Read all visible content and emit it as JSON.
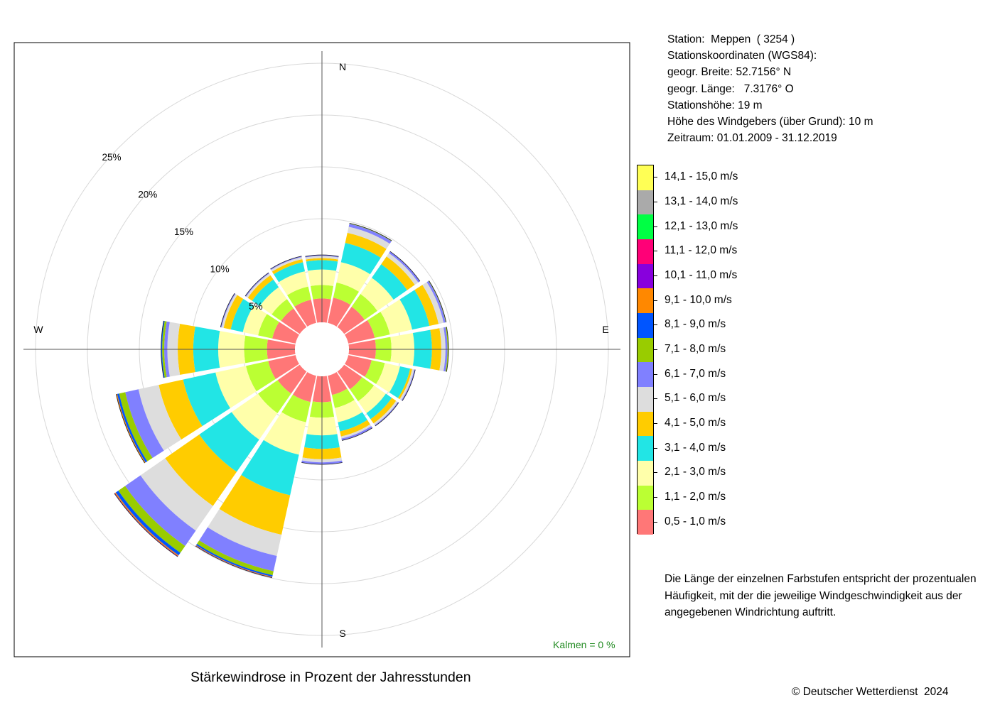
{
  "station_info": {
    "lines": [
      "Station:  Meppen  ( 3254 )",
      "Stationskoordinaten (WGS84):",
      "geogr. Breite: 52.7156° N",
      "geogr. Länge:   7.3176° O",
      "Stationshöhe: 19 m",
      "Höhe des Windgebers (über Grund): 10 m",
      "Zeitraum: 01.01.2009 - 31.12.2019"
    ]
  },
  "legend": {
    "items": [
      {
        "label": "14,1 - 15,0 m/s",
        "color": "#ffff55"
      },
      {
        "label": "13,1 - 14,0 m/s",
        "color": "#aaaaaa"
      },
      {
        "label": "12,1 - 13,0 m/s",
        "color": "#00ff44"
      },
      {
        "label": "11,1 - 12,0 m/s",
        "color": "#ff0077"
      },
      {
        "label": "10,1 - 11,0 m/s",
        "color": "#8800dd"
      },
      {
        "label": "9,1 - 10,0 m/s",
        "color": "#ff8800"
      },
      {
        "label": "8,1 - 9,0 m/s",
        "color": "#0055ff"
      },
      {
        "label": "7,1 - 8,0 m/s",
        "color": "#99cc00"
      },
      {
        "label": "6,1 - 7,0 m/s",
        "color": "#8080ff"
      },
      {
        "label": "5,1 - 6,0 m/s",
        "color": "#dddddd"
      },
      {
        "label": "4,1 - 5,0 m/s",
        "color": "#ffcc00"
      },
      {
        "label": "3,1 - 4,0 m/s",
        "color": "#22e5e5"
      },
      {
        "label": "2,1 - 3,0 m/s",
        "color": "#ffffaa"
      },
      {
        "label": "1,1 - 2,0 m/s",
        "color": "#bbff33"
      },
      {
        "label": "0,5 - 1,0 m/s",
        "color": "#ff7777"
      }
    ]
  },
  "note": "Die Länge der einzelnen Farbstufen entspricht der prozentualen Häufigkeit, mit der die jeweilige Windgeschwindigkeit aus der angegebenen Windrichtung auftritt.",
  "caption": "Stärkewindrose in Prozent der Jahresstunden",
  "copyright": "© Deutscher Wetterdienst  2024",
  "calm_label": "Kalmen  =  0 %",
  "calm_color": "#228b22",
  "chart_data": {
    "type": "wind_rose",
    "directions": [
      "N",
      "NNE",
      "NE",
      "ENE",
      "E",
      "ESE",
      "SE",
      "SSE",
      "S",
      "SSW",
      "SW",
      "WSW",
      "W",
      "WNW",
      "NW",
      "NNW"
    ],
    "direction_angles_deg": [
      0,
      22.5,
      45,
      67.5,
      90,
      112.5,
      135,
      157.5,
      180,
      202.5,
      225,
      247.5,
      270,
      292.5,
      315,
      337.5
    ],
    "compass_labels": [
      "N",
      "E",
      "S",
      "W"
    ],
    "radial_ticks": [
      5,
      10,
      15,
      20,
      25
    ],
    "radial_tick_labels": [
      "5%",
      "10%",
      "15%",
      "20%",
      "25%"
    ],
    "speed_classes": [
      "0,5 - 1,0 m/s",
      "1,1 - 2,0 m/s",
      "2,1 - 3,0 m/s",
      "3,1 - 4,0 m/s",
      "4,1 - 5,0 m/s",
      "5,1 - 6,0 m/s",
      "6,1 - 7,0 m/s",
      "7,1 - 8,0 m/s",
      "8,1 - 9,0 m/s",
      "9,1 - 10,0 m/s",
      "10,1 - 11,0 m/s",
      "11,1 - 12,0 m/s",
      "12,1 - 13,0 m/s",
      "13,1 - 14,0 m/s",
      "14,1 - 15,0 m/s"
    ],
    "series_cumulative_percent": [
      {
        "direction": "N",
        "values": [
          2.3,
          3.6,
          5.1,
          6.0,
          6.2,
          6.4,
          6.5
        ]
      },
      {
        "direction": "NNE",
        "values": [
          2.5,
          4.0,
          6.0,
          7.9,
          8.9,
          9.5,
          9.8,
          9.85
        ]
      },
      {
        "direction": "NE",
        "values": [
          2.4,
          3.9,
          5.8,
          7.4,
          8.3,
          8.7,
          8.9
        ]
      },
      {
        "direction": "ENE",
        "values": [
          2.6,
          4.1,
          6.3,
          8.0,
          8.9,
          9.4,
          9.6,
          9.65
        ]
      },
      {
        "direction": "E",
        "values": [
          2.6,
          4.1,
          6.3,
          8.0,
          8.9,
          9.3,
          9.5,
          9.6
        ]
      },
      {
        "direction": "ESE",
        "values": [
          2.3,
          3.6,
          5.1,
          6.1,
          6.3,
          6.5,
          6.6
        ]
      },
      {
        "direction": "SE",
        "values": [
          2.1,
          3.5,
          4.9,
          5.6,
          6.1,
          6.3,
          6.4
        ]
      },
      {
        "direction": "SSE",
        "values": [
          1.9,
          3.2,
          4.6,
          5.5,
          6.0,
          6.2,
          6.4
        ]
      },
      {
        "direction": "S",
        "values": [
          2.5,
          4.0,
          5.7,
          7.0,
          8.0,
          8.3,
          8.5
        ]
      },
      {
        "direction": "SSW",
        "values": [
          2.6,
          4.6,
          7.8,
          11.8,
          15.7,
          17.8,
          19.3,
          19.7,
          19.85,
          19.9,
          19.92,
          19.94,
          19.95
        ]
      },
      {
        "direction": "SW",
        "values": [
          2.6,
          4.9,
          8.0,
          11.8,
          15.8,
          18.7,
          20.5,
          21.3,
          21.6,
          21.7,
          21.73,
          21.75,
          21.76
        ]
      },
      {
        "direction": "WSW",
        "values": [
          2.7,
          4.9,
          7.9,
          11.1,
          13.5,
          15.5,
          16.8,
          17.4,
          17.6,
          17.7
        ]
      },
      {
        "direction": "W",
        "values": [
          2.7,
          4.9,
          7.4,
          9.8,
          11.3,
          12.3,
          12.6,
          12.8,
          12.9
        ]
      },
      {
        "direction": "WNW",
        "values": [
          2.3,
          3.7,
          5.2,
          6.4,
          7.1,
          7.3,
          7.4
        ]
      },
      {
        "direction": "NW",
        "values": [
          2.2,
          3.3,
          4.7,
          5.6,
          6.1,
          6.3,
          6.4
        ]
      },
      {
        "direction": "NNW",
        "values": [
          2.3,
          3.6,
          5.1,
          6.0,
          6.3,
          6.5,
          6.6
        ]
      }
    ],
    "calm_percent": 0,
    "grid": true,
    "title": "Stärkewindrose in Prozent der Jahresstunden"
  }
}
